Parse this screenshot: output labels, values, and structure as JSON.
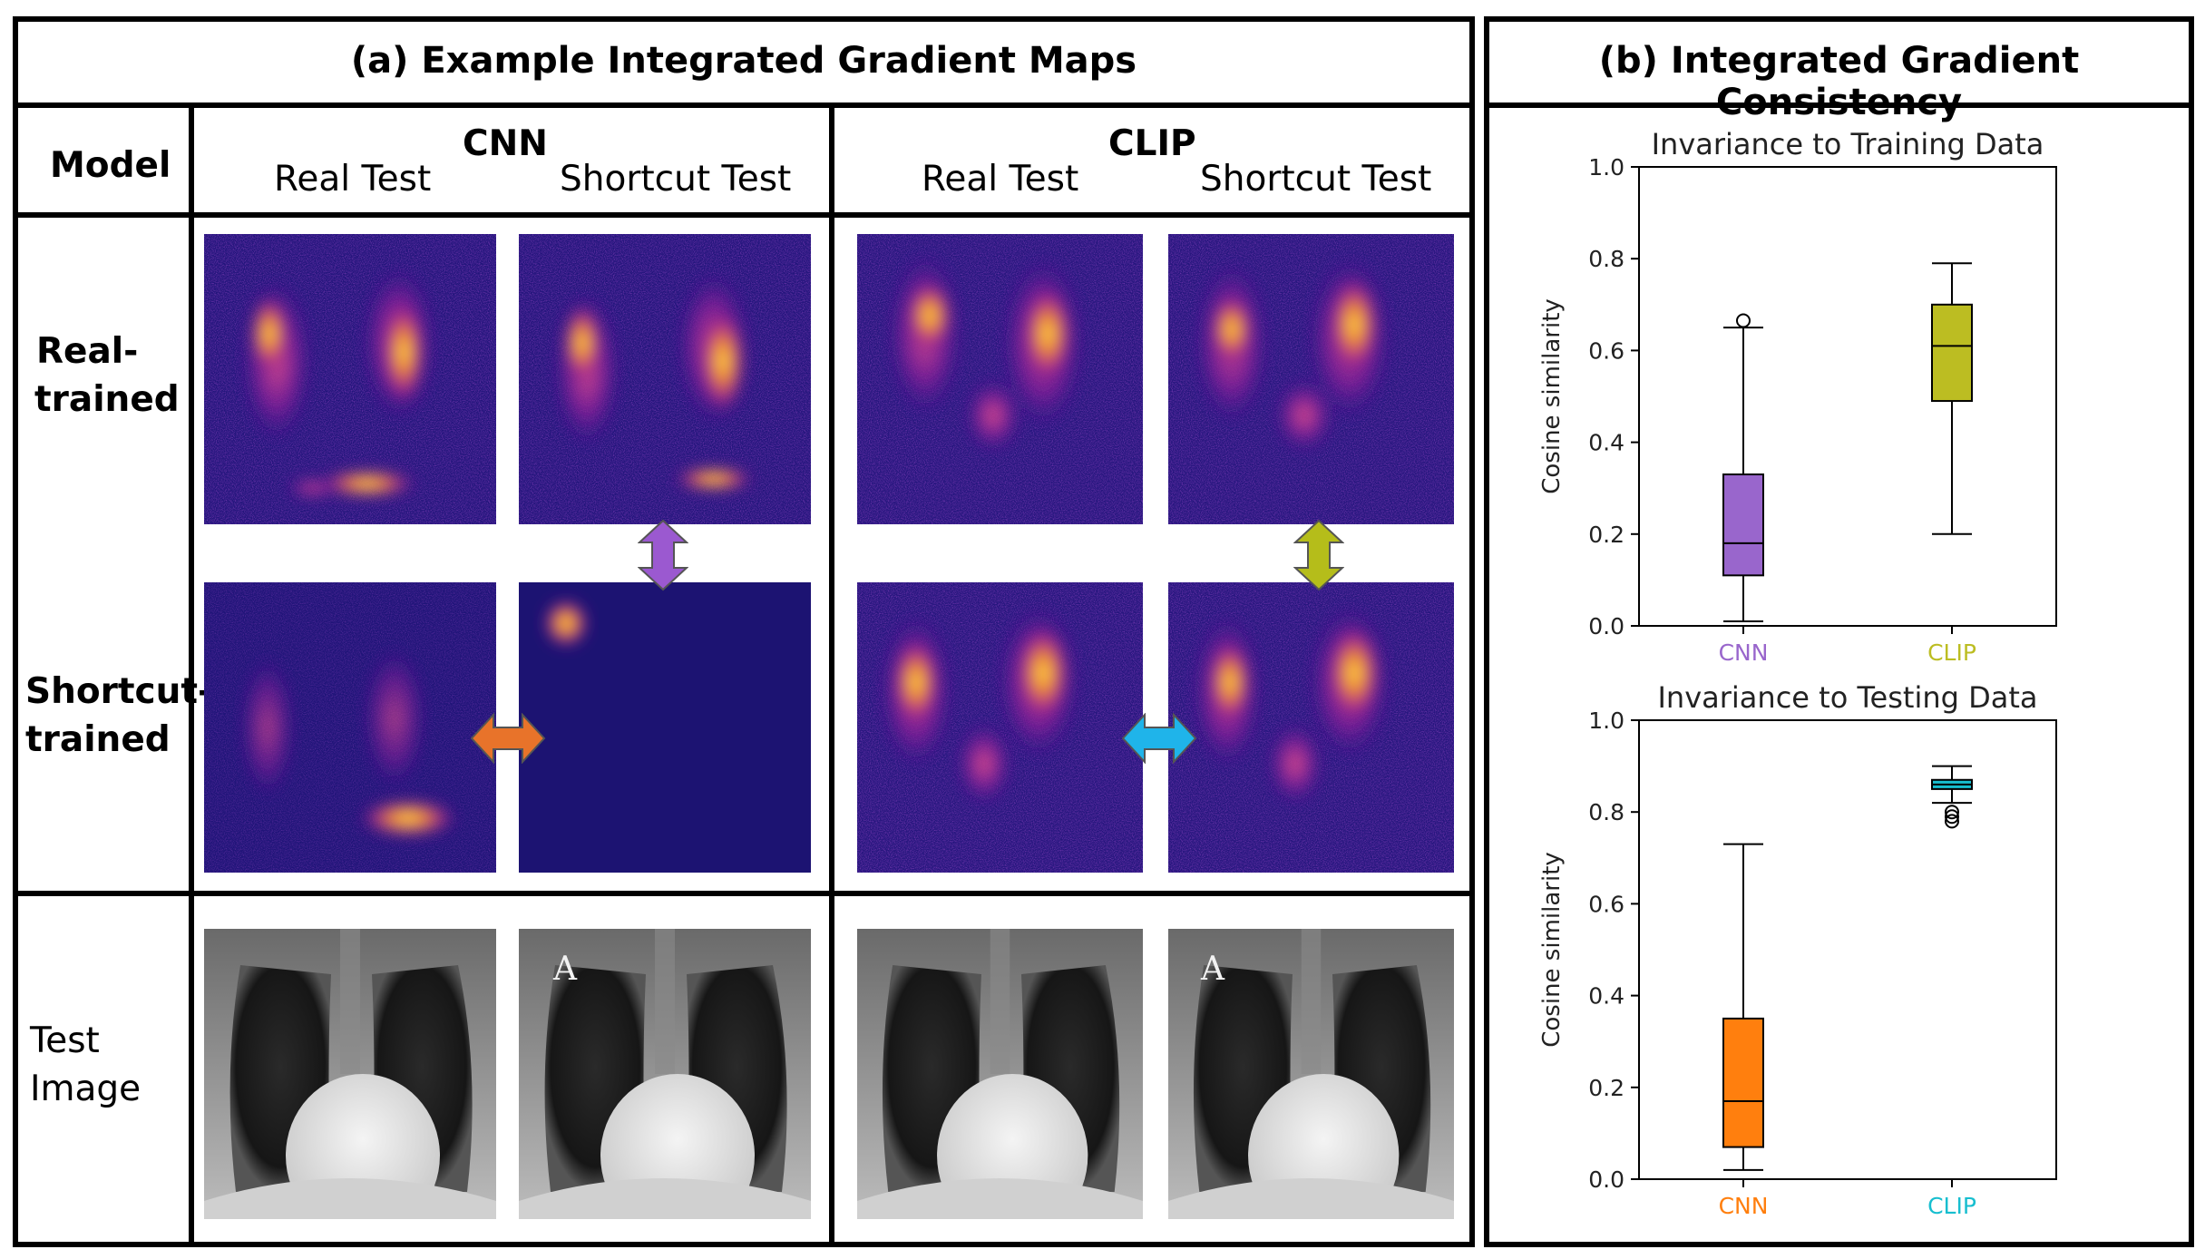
{
  "panel_a": {
    "title": "(a) Example Integrated Gradient Maps",
    "model_header": "Model",
    "cnn_header": "CNN",
    "clip_header": "CLIP",
    "real_test": "Real Test",
    "shortcut_test": "Shortcut Test",
    "row_real_line1": "Real-",
    "row_real_line2": "trained",
    "row_short_line1": "Shortcut-",
    "row_short_line2": "trained",
    "row_test_line1": "Test",
    "row_test_line2": "Image",
    "xray_marker": "A",
    "arrow_colors": {
      "cnn_vertical": "#9b59d0",
      "clip_vertical": "#b5bd1a",
      "cnn_horizontal": "#e8732a",
      "clip_horizontal": "#1fb4ea"
    }
  },
  "panel_b": {
    "title": "(b) Integrated Gradient Consistency"
  },
  "chart_data": [
    {
      "type": "box",
      "title": "Invariance to Training Data",
      "xlabel": "",
      "ylabel": "Cosine similarity",
      "ylim": [
        0.0,
        1.0
      ],
      "yticks": [
        "0.0",
        "0.2",
        "0.4",
        "0.6",
        "0.8",
        "1.0"
      ],
      "categories": [
        "CNN",
        "CLIP"
      ],
      "colors": [
        "#9966cc",
        "#bcbd22"
      ],
      "boxes": [
        {
          "name": "CNN",
          "whisker_low": 0.01,
          "q1": 0.11,
          "median": 0.18,
          "q3": 0.33,
          "whisker_high": 0.65,
          "outliers": [
            0.665
          ]
        },
        {
          "name": "CLIP",
          "whisker_low": 0.2,
          "q1": 0.49,
          "median": 0.61,
          "q3": 0.7,
          "whisker_high": 0.79,
          "outliers": []
        }
      ]
    },
    {
      "type": "box",
      "title": "Invariance to Testing Data",
      "xlabel": "",
      "ylabel": "Cosine similarity",
      "ylim": [
        0.0,
        1.0
      ],
      "yticks": [
        "0.0",
        "0.2",
        "0.4",
        "0.6",
        "0.8",
        "1.0"
      ],
      "categories": [
        "CNN",
        "CLIP"
      ],
      "colors": [
        "#ff7f0e",
        "#17becf"
      ],
      "boxes": [
        {
          "name": "CNN",
          "whisker_low": 0.02,
          "q1": 0.07,
          "median": 0.17,
          "q3": 0.35,
          "whisker_high": 0.73,
          "outliers": []
        },
        {
          "name": "CLIP",
          "whisker_low": 0.82,
          "q1": 0.85,
          "median": 0.86,
          "q3": 0.87,
          "whisker_high": 0.9,
          "outliers": [
            0.8,
            0.79,
            0.78
          ]
        }
      ]
    }
  ]
}
